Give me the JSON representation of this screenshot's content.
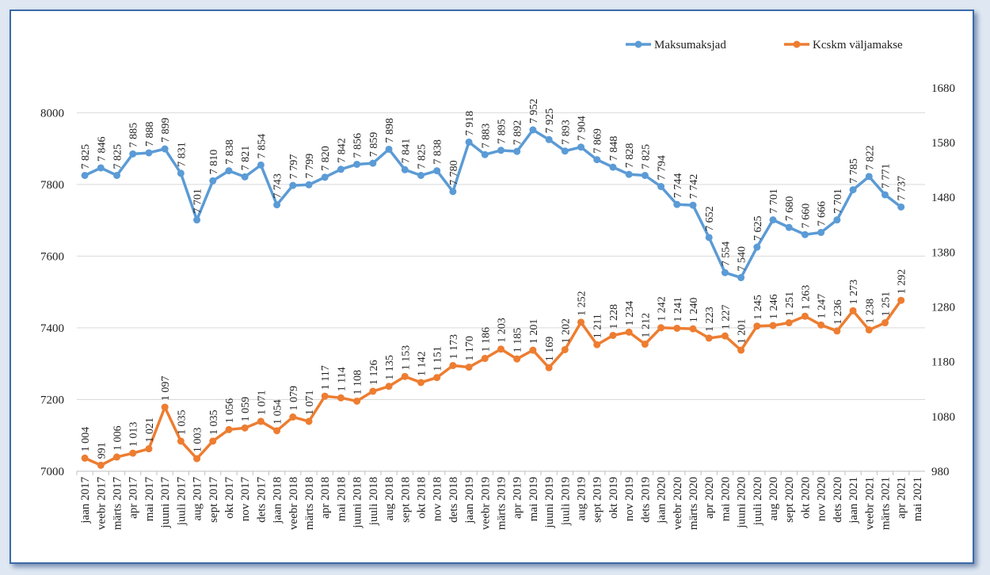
{
  "chart_data": {
    "type": "line",
    "categories": [
      "jaan 2017",
      "veebr 2017",
      "märts 2017",
      "apr 2017",
      "mai 2017",
      "juuni 2017",
      "juuli 2017",
      "aug 2017",
      "sept 2017",
      "okt 2017",
      "nov 2017",
      "dets 2017",
      "jaan 2018",
      "veebr 2018",
      "märts 2018",
      "apr 2018",
      "mai 2018",
      "juuni 2018",
      "juuli 2018",
      "aug 2018",
      "sept 2018",
      "okt 2018",
      "nov 2018",
      "dets 2018",
      "jaan 2019",
      "veebr 2019",
      "märts 2019",
      "apr 2019",
      "mai 2019",
      "juuni 2019",
      "juuli 2019",
      "aug 2019",
      "sept 2019",
      "okt 2019",
      "nov 2019",
      "dets 2019",
      "jaan 2020",
      "veebr 2020",
      "märts 2020",
      "apr 2020",
      "mai 2020",
      "juuni 2020",
      "juuli 2020",
      "aug 2020",
      "sept 2020",
      "okt 2020",
      "nov 2020",
      "dets 2020",
      "jaan 2021",
      "veebr 2021",
      "märts 2021",
      "apr 2021",
      "mai 2021"
    ],
    "series": [
      {
        "name": "Maksumaksjad",
        "color": "#5b9bd5",
        "axis": "y",
        "values": [
          7825,
          7846,
          7825,
          7885,
          7888,
          7899,
          7831,
          7701,
          7810,
          7838,
          7821,
          7854,
          7743,
          7797,
          7799,
          7820,
          7842,
          7856,
          7859,
          7898,
          7841,
          7825,
          7838,
          7780,
          7918,
          7883,
          7895,
          7892,
          7952,
          7925,
          7893,
          7904,
          7869,
          7848,
          7828,
          7825,
          7794,
          7744,
          7742,
          7652,
          7554,
          7540,
          7625,
          7701,
          7680,
          7660,
          7666,
          7701,
          7785,
          7822,
          7771,
          7737,
          null
        ],
        "value_labels": [
          "7 825",
          "7 846",
          "7 825",
          "7 885",
          "7 888",
          "7 899",
          "7 831",
          "7 701",
          "7 810",
          "7 838",
          "7 821",
          "7 854",
          "7 743",
          "7 797",
          "7 799",
          "7 820",
          "7 842",
          "7 856",
          "7 859",
          "7 898",
          "7 841",
          "7 825",
          "7 838",
          "7 780",
          "7 918",
          "7 883",
          "7 895",
          "7 892",
          "7 952",
          "7 925",
          "7 893",
          "7 904",
          "7 869",
          "7 848",
          "7 828",
          "7 825",
          "7 794",
          "7 744",
          "7 742",
          "7 652",
          "7 554",
          "7 540",
          "7 625",
          "7 701",
          "7 680",
          "7 660",
          "7 666",
          "7 701",
          "7 785",
          "7 822",
          "7 771",
          "7 737",
          null
        ]
      },
      {
        "name": "Kcskm väljamakse",
        "color": "#ed7d31",
        "axis": "y2",
        "values": [
          1004,
          991,
          1006,
          1013,
          1021,
          1097,
          1035,
          1003,
          1035,
          1056,
          1059,
          1071,
          1054,
          1079,
          1071,
          1117,
          1114,
          1108,
          1126,
          1135,
          1153,
          1142,
          1151,
          1173,
          1170,
          1186,
          1203,
          1185,
          1201,
          1169,
          1202,
          1252,
          1211,
          1228,
          1234,
          1212,
          1242,
          1241,
          1240,
          1223,
          1227,
          1201,
          1245,
          1246,
          1251,
          1263,
          1247,
          1236,
          1273,
          1238,
          1251,
          1292,
          null
        ],
        "value_labels": [
          "1 004",
          "991",
          "1 006",
          "1 013",
          "1 021",
          "1 097",
          "1 035",
          "1 003",
          "1 035",
          "1 056",
          "1 059",
          "1 071",
          "1 054",
          "1 079",
          "1 071",
          "1 117",
          "1 114",
          "1 108",
          "1 126",
          "1 135",
          "1 153",
          "1 142",
          "1 151",
          "1 173",
          "1 170",
          "1 186",
          "1 203",
          "1 185",
          "1 201",
          "1 169",
          "1 202",
          "1 252",
          "1 211",
          "1 228",
          "1 234",
          "1 212",
          "1 242",
          "1 241",
          "1 240",
          "1 223",
          "1 227",
          "1 201",
          "1 245",
          "1 246",
          "1 251",
          "1 263",
          "1 247",
          "1 236",
          "1 273",
          "1 238",
          "1 251",
          "1 292",
          null
        ]
      }
    ],
    "ylim": [
      7000,
      8100
    ],
    "yticks": [
      7000,
      7200,
      7400,
      7600,
      7800,
      8000
    ],
    "y2lim": [
      980,
      1700
    ],
    "y2ticks": [
      980,
      1080,
      1180,
      1280,
      1380,
      1480,
      1580,
      1680
    ],
    "grid": true,
    "legend": "top-right"
  }
}
